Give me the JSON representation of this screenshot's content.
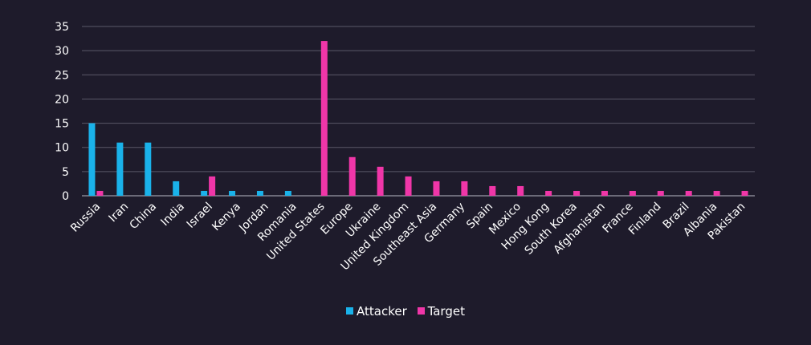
{
  "chart_data": {
    "type": "bar",
    "categories": [
      "Russia",
      "Iran",
      "China",
      "India",
      "Israel",
      "Kenya",
      "Jordan",
      "Romania",
      "United States",
      "Europe",
      "Ukraine",
      "United Kingdom",
      "Southeast Asia",
      "Germany",
      "Spain",
      "Mexico",
      "Hong Kong",
      "South Korea",
      "Afghanistan",
      "France",
      "Finland",
      "Brazil",
      "Albania",
      "Pakistan"
    ],
    "series": [
      {
        "name": "Attacker",
        "color": "#1ab2ea",
        "values": [
          15,
          11,
          11,
          3,
          1,
          1,
          1,
          1,
          0,
          0,
          0,
          0,
          0,
          0,
          0,
          0,
          0,
          0,
          0,
          0,
          0,
          0,
          0,
          0
        ]
      },
      {
        "name": "Target",
        "color": "#f036a8",
        "values": [
          1,
          0,
          0,
          0,
          4,
          0,
          0,
          0,
          32,
          8,
          6,
          4,
          3,
          3,
          2,
          2,
          1,
          1,
          1,
          1,
          1,
          1,
          1,
          1
        ]
      }
    ],
    "ylim": [
      0,
      35
    ],
    "yticks": [
      0,
      5,
      10,
      15,
      20,
      25,
      30,
      35
    ],
    "grid": true,
    "legend_position": "bottom"
  }
}
